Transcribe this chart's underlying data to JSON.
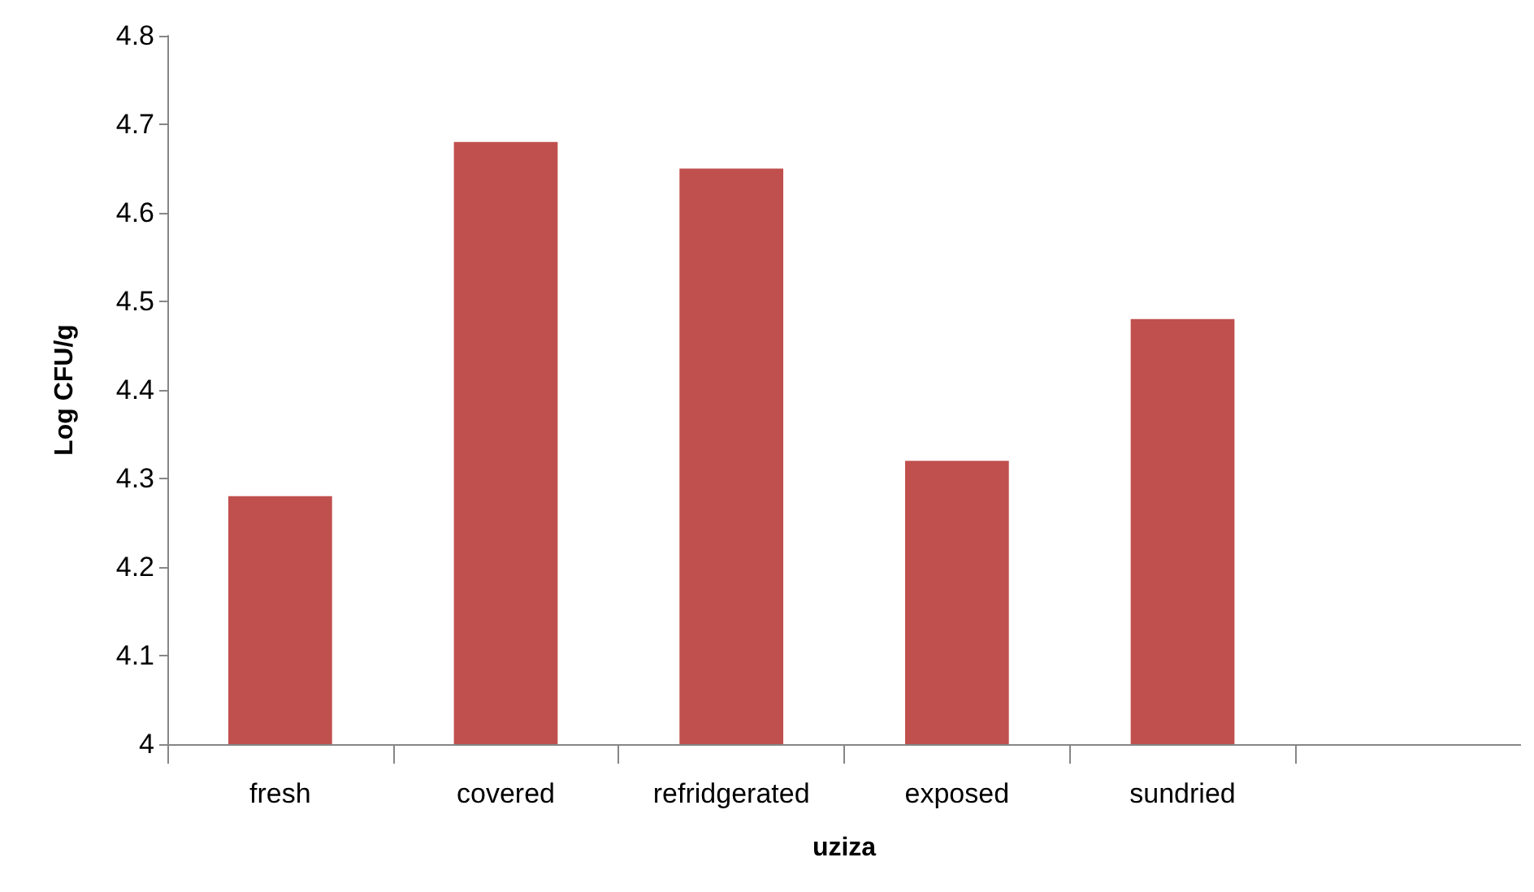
{
  "chart_data": {
    "type": "bar",
    "xlabel": "uziza",
    "ylabel": "Log CFU/g",
    "categories": [
      "fresh",
      "covered",
      "refridgerated",
      "exposed",
      "sundried",
      null
    ],
    "values": [
      4.28,
      4.68,
      4.65,
      4.32,
      4.48,
      null
    ],
    "color": "#c0504d",
    "ylim": [
      4,
      4.8
    ],
    "yticks": [
      4,
      4.1,
      4.2,
      4.3,
      4.4,
      4.5,
      4.6,
      4.7,
      4.8
    ],
    "grid": false
  }
}
